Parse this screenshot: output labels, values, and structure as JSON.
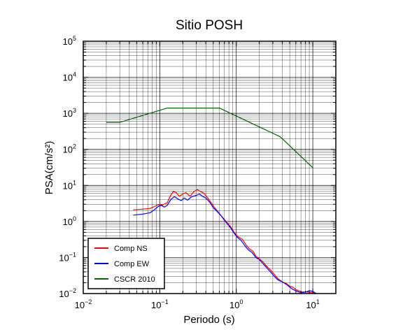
{
  "chart_data": {
    "type": "line",
    "title": "Sitio POSH",
    "xlabel": "Periodo (s)",
    "ylabel": "PSA(cm/s²)",
    "x_scale": "log",
    "y_scale": "log",
    "xlim": [
      0.01,
      20
    ],
    "ylim": [
      0.01,
      100000
    ],
    "grid": true,
    "legend_position": "bottom-left",
    "x_ticks": [
      {
        "value": 0.01,
        "base": "10",
        "exp": "−2"
      },
      {
        "value": 0.1,
        "base": "10",
        "exp": "−1"
      },
      {
        "value": 1,
        "base": "10",
        "exp": "0"
      },
      {
        "value": 10,
        "base": "10",
        "exp": "1"
      }
    ],
    "y_ticks": [
      {
        "value": 0.01,
        "base": "10",
        "exp": "−2"
      },
      {
        "value": 0.1,
        "base": "10",
        "exp": "−1"
      },
      {
        "value": 1,
        "base": "10",
        "exp": "0"
      },
      {
        "value": 10,
        "base": "10",
        "exp": "1"
      },
      {
        "value": 100,
        "base": "10",
        "exp": "2"
      },
      {
        "value": 1000,
        "base": "10",
        "exp": "3"
      },
      {
        "value": 10000,
        "base": "10",
        "exp": "4"
      },
      {
        "value": 100000,
        "base": "10",
        "exp": "5"
      }
    ],
    "series": [
      {
        "name": "Comp NS",
        "color": "#ff0000",
        "points": [
          [
            0.045,
            2.1
          ],
          [
            0.06,
            2.2
          ],
          [
            0.075,
            2.3
          ],
          [
            0.085,
            2.6
          ],
          [
            0.095,
            2.9
          ],
          [
            0.11,
            2.9
          ],
          [
            0.125,
            3.3
          ],
          [
            0.14,
            5.5
          ],
          [
            0.15,
            6.8
          ],
          [
            0.165,
            6.3
          ],
          [
            0.18,
            5.0
          ],
          [
            0.2,
            5.8
          ],
          [
            0.22,
            6.3
          ],
          [
            0.25,
            5.0
          ],
          [
            0.28,
            6.8
          ],
          [
            0.31,
            7.6
          ],
          [
            0.34,
            6.8
          ],
          [
            0.38,
            6.0
          ],
          [
            0.42,
            4.6
          ],
          [
            0.47,
            3.3
          ],
          [
            0.52,
            2.4
          ],
          [
            0.58,
            1.85
          ],
          [
            0.65,
            1.35
          ],
          [
            0.75,
            0.95
          ],
          [
            0.85,
            0.7
          ],
          [
            0.95,
            0.48
          ],
          [
            1.05,
            0.38
          ],
          [
            1.2,
            0.32
          ],
          [
            1.35,
            0.22
          ],
          [
            1.5,
            0.17
          ],
          [
            1.65,
            0.15
          ],
          [
            1.8,
            0.11
          ],
          [
            2.0,
            0.092
          ],
          [
            2.2,
            0.078
          ],
          [
            2.5,
            0.057
          ],
          [
            2.8,
            0.045
          ],
          [
            3.1,
            0.035
          ],
          [
            3.5,
            0.026
          ],
          [
            4.0,
            0.021
          ],
          [
            4.5,
            0.019
          ],
          [
            5.0,
            0.016
          ],
          [
            5.5,
            0.015
          ],
          [
            6.0,
            0.013
          ],
          [
            6.5,
            0.012
          ],
          [
            7.5,
            0.011
          ],
          [
            8.5,
            0.011
          ],
          [
            10.0,
            0.0105
          ],
          [
            11.0,
            0.0102
          ]
        ]
      },
      {
        "name": "Comp EW",
        "color": "#0000ff",
        "points": [
          [
            0.045,
            1.5
          ],
          [
            0.06,
            1.6
          ],
          [
            0.075,
            1.75
          ],
          [
            0.085,
            2.1
          ],
          [
            0.095,
            2.6
          ],
          [
            0.105,
            2.8
          ],
          [
            0.115,
            2.5
          ],
          [
            0.125,
            2.8
          ],
          [
            0.14,
            4.1
          ],
          [
            0.155,
            4.9
          ],
          [
            0.17,
            4.3
          ],
          [
            0.19,
            3.8
          ],
          [
            0.21,
            4.5
          ],
          [
            0.23,
            3.9
          ],
          [
            0.26,
            4.8
          ],
          [
            0.3,
            5.3
          ],
          [
            0.33,
            5.8
          ],
          [
            0.36,
            5.0
          ],
          [
            0.4,
            4.5
          ],
          [
            0.45,
            3.4
          ],
          [
            0.5,
            2.4
          ],
          [
            0.56,
            1.9
          ],
          [
            0.63,
            1.45
          ],
          [
            0.72,
            1.0
          ],
          [
            0.82,
            0.72
          ],
          [
            0.92,
            0.5
          ],
          [
            1.02,
            0.37
          ],
          [
            1.15,
            0.3
          ],
          [
            1.3,
            0.21
          ],
          [
            1.45,
            0.16
          ],
          [
            1.6,
            0.14
          ],
          [
            1.8,
            0.1
          ],
          [
            2.0,
            0.088
          ],
          [
            2.2,
            0.07
          ],
          [
            2.5,
            0.052
          ],
          [
            2.8,
            0.04
          ],
          [
            3.1,
            0.031
          ],
          [
            3.5,
            0.024
          ],
          [
            4.0,
            0.021
          ],
          [
            4.5,
            0.018
          ],
          [
            5.0,
            0.015
          ],
          [
            5.5,
            0.013
          ],
          [
            6.0,
            0.012
          ],
          [
            7.0,
            0.0105
          ],
          [
            8.0,
            0.011
          ],
          [
            9.0,
            0.012
          ],
          [
            10.0,
            0.0115
          ],
          [
            11.0,
            0.0102
          ]
        ]
      },
      {
        "name": "CSCR 2010",
        "color": "#006400",
        "points": [
          [
            0.02,
            560
          ],
          [
            0.03,
            560
          ],
          [
            0.125,
            1400
          ],
          [
            0.6,
            1400
          ],
          [
            3.75,
            224
          ],
          [
            10.0,
            31
          ]
        ]
      }
    ]
  }
}
